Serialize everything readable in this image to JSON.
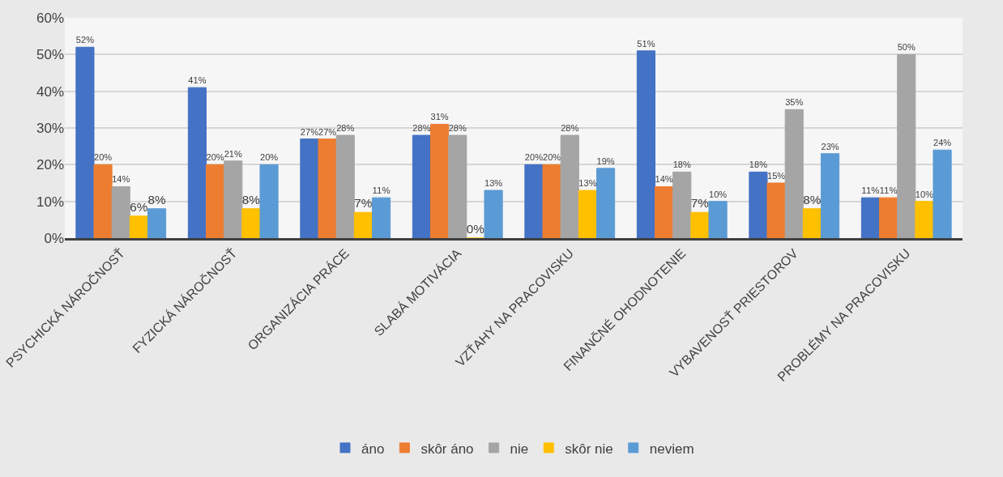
{
  "chart_data": {
    "type": "bar",
    "categories": [
      "PSYCHICKÁ NÁROČNOSŤ",
      "FYZICKÁ NÁROČNOSŤ",
      "ORGANIZÁCIA PRÁCE",
      "SLABÁ MOTIVÁCIA",
      "VZŤAHY NA PRACOVISKU",
      "FINANČNÉ OHODNOTENIE",
      "VYBAVENOSŤ PRIESTOROV",
      "PROBLÉMY NA PRACOVISKU"
    ],
    "series": [
      {
        "name": "áno",
        "color": "#4472c4",
        "values": [
          52,
          41,
          27,
          28,
          20,
          51,
          18,
          11
        ],
        "value_labels": [
          "52%",
          "41%",
          "27%",
          "28%",
          "20%",
          "51%",
          "18%",
          "11%"
        ]
      },
      {
        "name": "skôr áno",
        "color": "#ed7d31",
        "values": [
          20,
          20,
          27,
          31,
          20,
          14,
          15,
          11
        ],
        "value_labels": [
          "20%",
          "20%",
          "27%",
          "31%",
          "20%",
          "14%",
          "15%",
          "11%"
        ]
      },
      {
        "name": "nie",
        "color": "#a5a5a5",
        "values": [
          14,
          21,
          28,
          28,
          28,
          18,
          35,
          50
        ],
        "value_labels": [
          "14%",
          "21%",
          "28%",
          "28%",
          "28%",
          "18%",
          "35%",
          "50%"
        ]
      },
      {
        "name": "skôr nie",
        "color": "#ffc000",
        "values": [
          6,
          8,
          7,
          0,
          13,
          7,
          8,
          10
        ],
        "value_labels": [
          "6%",
          "8%",
          "7%",
          "0%",
          "13%",
          "7%",
          "8%",
          "10%"
        ]
      },
      {
        "name": "neviem",
        "color": "#5b9bd5",
        "values": [
          8,
          20,
          11,
          13,
          19,
          10,
          23,
          24
        ],
        "value_labels": [
          "8%",
          "20%",
          "11%",
          "13%",
          "19%",
          "10%",
          "23%",
          "24%"
        ]
      }
    ],
    "ylim": [
      0,
      60
    ],
    "yticks": [
      {
        "value": 0,
        "label": "0%"
      },
      {
        "value": 10,
        "label": "10%"
      },
      {
        "value": 20,
        "label": "20%"
      },
      {
        "value": 30,
        "label": "30%"
      },
      {
        "value": 40,
        "label": "40%"
      },
      {
        "value": 50,
        "label": "50%"
      },
      {
        "value": 60,
        "label": "60%"
      }
    ],
    "grid": "y",
    "legend": "bottom"
  }
}
